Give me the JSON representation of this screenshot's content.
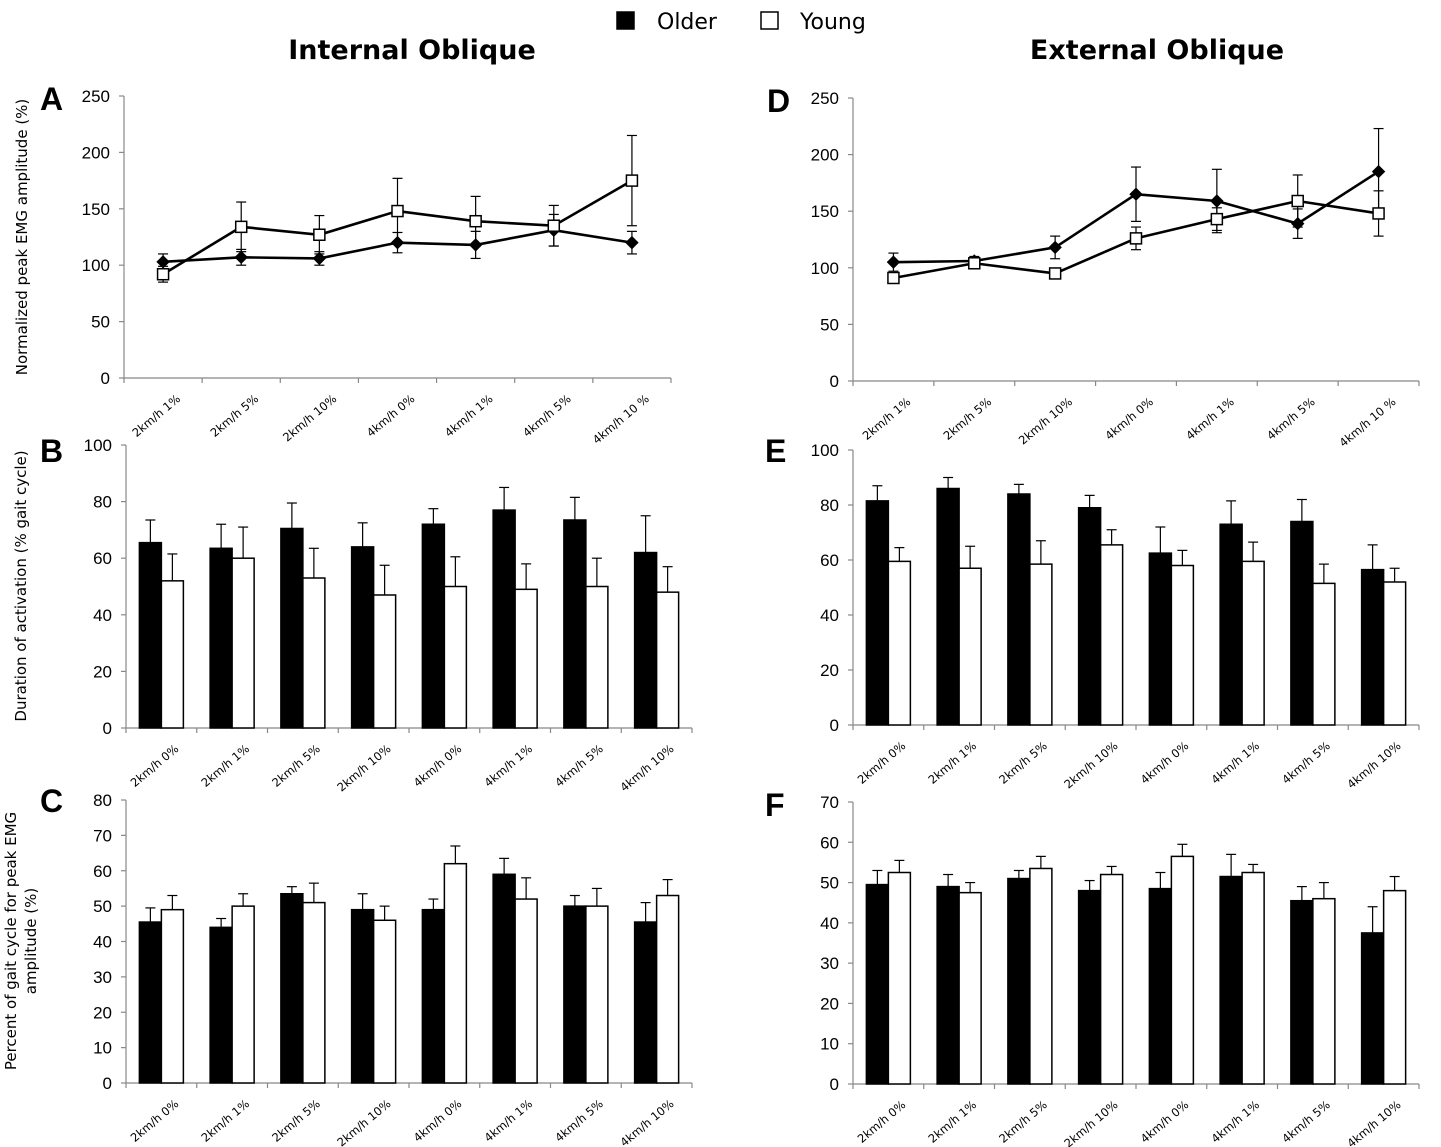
{
  "legend": [
    {
      "label": "Older",
      "color": "#000000"
    },
    {
      "label": "Young",
      "color": "#ffffff"
    }
  ],
  "column_titles": [
    "Internal Oblique",
    "External Oblique"
  ],
  "chart_data": [
    {
      "id": "A",
      "type": "line",
      "title": "Internal Oblique",
      "ylabel": "Normalized peak EMG amplitude (%)",
      "ylim": [
        0,
        250
      ],
      "yticks": [
        0,
        50,
        100,
        150,
        200,
        250
      ],
      "categories": [
        "2km/h 1%",
        "2km/h 5%",
        "2km/h 10%",
        "4km/h 0%",
        "4km/h 1%",
        "4km/h 5%",
        "4km/h 10 %"
      ],
      "series": [
        {
          "name": "Older",
          "values": [
            103,
            107,
            106,
            120,
            118,
            131,
            120
          ],
          "errors": [
            7,
            7,
            6,
            9,
            12,
            14,
            10
          ]
        },
        {
          "name": "Young",
          "values": [
            92,
            134,
            127,
            148,
            139,
            135,
            175
          ],
          "errors": [
            7,
            22,
            17,
            29,
            22,
            18,
            40
          ]
        }
      ]
    },
    {
      "id": "B",
      "type": "bar",
      "ylabel": "Duration of activation (% gait cycle)",
      "ylim": [
        0,
        100
      ],
      "yticks": [
        0,
        20,
        40,
        60,
        80,
        100
      ],
      "categories": [
        "2km/h 0%",
        "2km/h 1%",
        "2km/h 5%",
        "2km/h 10%",
        "4km/h 0%",
        "4km/h 1%",
        "4km/h 5%",
        "4km/h 10%"
      ],
      "series": [
        {
          "name": "Older",
          "values": [
            65.5,
            63.5,
            70.5,
            64,
            72,
            77,
            73.5,
            62
          ],
          "errors": [
            8,
            8.5,
            9,
            8.5,
            5.5,
            8,
            8,
            13
          ]
        },
        {
          "name": "Young",
          "values": [
            52,
            60,
            53,
            47,
            50,
            49,
            50,
            48
          ],
          "errors": [
            9.5,
            11,
            10.5,
            10.5,
            10.5,
            9,
            10,
            9
          ]
        }
      ]
    },
    {
      "id": "C",
      "type": "bar",
      "ylabel": "Percent of gait cycle for peak EMG amplitude (%)",
      "ylim": [
        0,
        80
      ],
      "yticks": [
        0,
        10,
        20,
        30,
        40,
        50,
        60,
        70,
        80
      ],
      "categories": [
        "2km/h 0%",
        "2km/h 1%",
        "2km/h 5%",
        "2km/h 10%",
        "4km/h 0%",
        "4km/h 1%",
        "4km/h 5%",
        "4km/h 10%"
      ],
      "series": [
        {
          "name": "Older",
          "values": [
            45.5,
            44,
            53.5,
            49,
            49,
            59,
            50,
            45.5
          ],
          "errors": [
            4,
            2.5,
            2,
            4.5,
            3,
            4.5,
            3,
            5.5
          ]
        },
        {
          "name": "Young",
          "values": [
            49,
            50,
            51,
            46,
            62,
            52,
            50,
            53
          ],
          "errors": [
            4,
            3.5,
            5.5,
            4,
            5,
            6,
            5,
            4.5
          ]
        }
      ]
    },
    {
      "id": "D",
      "type": "line",
      "title": "External Oblique",
      "ylim": [
        0,
        250
      ],
      "yticks": [
        0,
        50,
        100,
        150,
        200,
        250
      ],
      "categories": [
        "2km/h 1%",
        "2km/h 5%",
        "2km/h 10%",
        "4km/h 0%",
        "4km/h 1%",
        "4km/h 5%",
        "4km/h 10 %"
      ],
      "series": [
        {
          "name": "Older",
          "values": [
            105,
            106,
            118,
            165,
            159,
            139,
            185
          ],
          "errors": [
            8,
            4,
            10,
            24,
            28,
            13,
            38
          ]
        },
        {
          "name": "Young",
          "values": [
            91,
            104,
            95,
            126,
            143,
            159,
            148
          ],
          "errors": [
            3,
            4,
            3,
            10,
            10,
            23,
            20
          ]
        }
      ]
    },
    {
      "id": "E",
      "type": "bar",
      "ylim": [
        0,
        100
      ],
      "yticks": [
        0,
        20,
        40,
        60,
        80,
        100
      ],
      "categories": [
        "2km/h 0%",
        "2km/h 1%",
        "2km/h 5%",
        "2km/h 10%",
        "4km/h 0%",
        "4km/h 1%",
        "4km/h 5%",
        "4km/h 10%"
      ],
      "series": [
        {
          "name": "Older",
          "values": [
            81.5,
            86,
            84,
            79,
            62.5,
            73,
            74,
            56.5
          ],
          "errors": [
            5.5,
            4,
            3.5,
            4.5,
            9.5,
            8.5,
            8,
            9
          ]
        },
        {
          "name": "Young",
          "values": [
            59.5,
            57,
            58.5,
            65.5,
            58,
            59.5,
            51.5,
            52
          ],
          "errors": [
            5,
            8,
            8.5,
            5.5,
            5.5,
            7,
            7,
            5
          ]
        }
      ]
    },
    {
      "id": "F",
      "type": "bar",
      "ylim": [
        0,
        70
      ],
      "yticks": [
        0,
        10,
        20,
        30,
        40,
        50,
        60,
        70
      ],
      "categories": [
        "2km/h 0%",
        "2km/h 1%",
        "2km/h 5%",
        "2km/h 10%",
        "4km/h 0%",
        "4km/h 1%",
        "4km/h 5%",
        "4km/h 10%"
      ],
      "series": [
        {
          "name": "Older",
          "values": [
            49.5,
            49,
            51,
            48,
            48.5,
            51.5,
            45.5,
            37.5
          ],
          "errors": [
            3.5,
            3,
            2,
            2.5,
            4,
            5.5,
            3.5,
            6.5
          ]
        },
        {
          "name": "Young",
          "values": [
            52.5,
            47.5,
            53.5,
            52,
            56.5,
            52.5,
            46,
            48
          ],
          "errors": [
            3,
            2.5,
            3,
            2,
            3,
            2,
            4,
            3.5
          ]
        }
      ]
    }
  ]
}
